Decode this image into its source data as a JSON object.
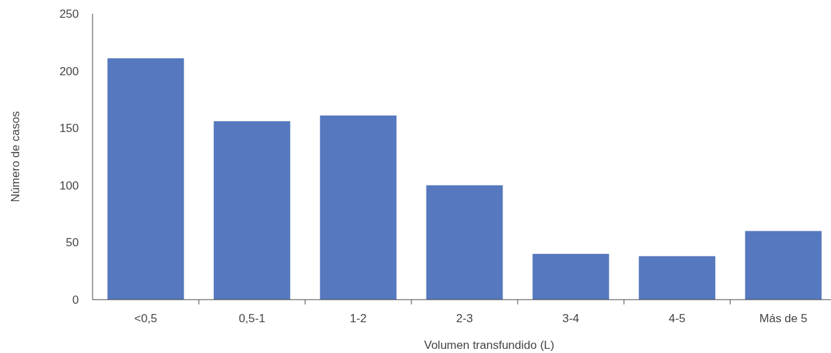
{
  "chart_data": {
    "type": "bar",
    "xlabel": "Volumen transfundido (L)",
    "ylabel": "Número de casos",
    "categories": [
      "<0,5",
      "0,5-1",
      "1-2",
      "2-3",
      "3-4",
      "4-5",
      "Más de 5"
    ],
    "values": [
      211,
      156,
      161,
      100,
      40,
      38,
      60
    ],
    "color": "#5678be",
    "ylim": [
      0,
      250
    ],
    "yticks": [
      0,
      50,
      100,
      150,
      200,
      250
    ],
    "grid": false
  }
}
